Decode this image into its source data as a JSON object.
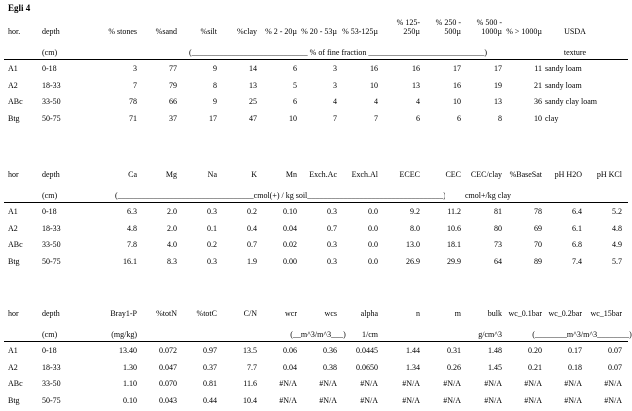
{
  "title": "Egli 4",
  "tables": [
    {
      "headers": [
        "hor.",
        "depth",
        "% stones",
        "%sand",
        "%silt",
        "%clay",
        "% 2 - 20µ",
        "% 20 - 53µ",
        "% 53-125µ",
        "% 125-250µ",
        "% 250 - 500µ",
        "% 500 - 1000µ",
        "% > 1000µ",
        "USDA"
      ],
      "units": [
        "(cm)",
        "(_____________________________ % of fine fraction _____________________________)",
        "texture"
      ],
      "rows": [
        [
          "A1",
          "0-18",
          "3",
          "77",
          "9",
          "14",
          "6",
          "3",
          "16",
          "16",
          "17",
          "17",
          "11",
          "sandy loam"
        ],
        [
          "A2",
          "18-33",
          "7",
          "79",
          "8",
          "13",
          "5",
          "3",
          "10",
          "13",
          "16",
          "19",
          "21",
          "sandy loam"
        ],
        [
          "ABc",
          "33-50",
          "78",
          "66",
          "9",
          "25",
          "6",
          "4",
          "4",
          "4",
          "10",
          "13",
          "36",
          "sandy clay loam"
        ],
        [
          "Btg",
          "50-75",
          "71",
          "37",
          "17",
          "47",
          "10",
          "7",
          "7",
          "6",
          "6",
          "8",
          "10",
          "clay"
        ]
      ]
    },
    {
      "headers": [
        "hor",
        "depth",
        "Ca",
        "Mg",
        "Na",
        "K",
        "Mn",
        "Exch.Ac",
        "Exch.Al",
        "ECEC",
        "CEC",
        "CEC/clay",
        "%BaseSat",
        "pH H2O",
        "pH KCl"
      ],
      "units": [
        "(cm)",
        "(__________________________________cmol(+) / kg soil__________________________________)",
        "cmol+/kg clay"
      ],
      "rows": [
        [
          "A1",
          "0-18",
          "6.3",
          "2.0",
          "0.3",
          "0.2",
          "0.10",
          "0.3",
          "0.0",
          "9.2",
          "11.2",
          "81",
          "78",
          "6.4",
          "5.2"
        ],
        [
          "A2",
          "18-33",
          "4.8",
          "2.0",
          "0.1",
          "0.4",
          "0.04",
          "0.7",
          "0.0",
          "8.0",
          "10.6",
          "80",
          "69",
          "6.1",
          "4.8"
        ],
        [
          "ABc",
          "33-50",
          "7.8",
          "4.0",
          "0.2",
          "0.7",
          "0.02",
          "0.3",
          "0.0",
          "13.0",
          "18.1",
          "73",
          "70",
          "6.8",
          "4.9"
        ],
        [
          "Btg",
          "50-75",
          "16.1",
          "8.3",
          "0.3",
          "1.9",
          "0.00",
          "0.3",
          "0.0",
          "26.9",
          "29.9",
          "64",
          "89",
          "7.4",
          "5.7"
        ]
      ]
    },
    {
      "headers": [
        "hor",
        "depth",
        "Bray1-P",
        "%totN",
        "%totC",
        "C/N",
        "wcr",
        "wcs",
        "alpha",
        "n",
        "m",
        "bulk",
        "wc_0.1bar",
        "wc_0.2bar",
        "wc_15bar"
      ],
      "units": [
        "(cm)",
        "(mg/kg)",
        "(__m^3/m^3___)",
        "1/cm",
        "g/cm^3",
        "(________m^3/m^3________)"
      ],
      "rows": [
        [
          "A1",
          "0-18",
          "13.40",
          "0.072",
          "0.97",
          "13.5",
          "0.06",
          "0.36",
          "0.0445",
          "1.44",
          "0.31",
          "1.48",
          "0.20",
          "0.17",
          "0.07"
        ],
        [
          "A2",
          "18-33",
          "1.30",
          "0.047",
          "0.37",
          "7.7",
          "0.04",
          "0.38",
          "0.0650",
          "1.34",
          "0.26",
          "1.45",
          "0.21",
          "0.18",
          "0.07"
        ],
        [
          "ABc",
          "33-50",
          "1.10",
          "0.070",
          "0.81",
          "11.6",
          "#N/A",
          "#N/A",
          "#N/A",
          "#N/A",
          "#N/A",
          "#N/A",
          "#N/A",
          "#N/A",
          "#N/A"
        ],
        [
          "Btg",
          "50-75",
          "0.10",
          "0.043",
          "0.44",
          "10.4",
          "#N/A",
          "#N/A",
          "#N/A",
          "#N/A",
          "#N/A",
          "#N/A",
          "#N/A",
          "#N/A",
          "#N/A"
        ]
      ]
    }
  ]
}
